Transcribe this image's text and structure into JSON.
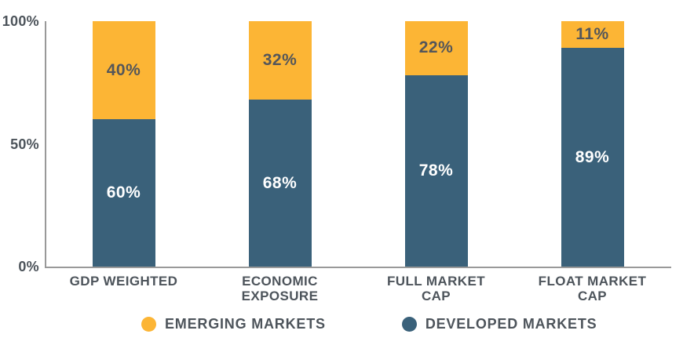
{
  "chart_data": {
    "type": "bar",
    "stacked": true,
    "title": "",
    "categories": [
      "GDP WEIGHTED",
      "ECONOMIC\nEXPOSURE",
      "FULL MARKET\nCAP",
      "FLOAT MARKET\nCAP"
    ],
    "series": [
      {
        "name": "EMERGING MARKETS",
        "color": "#FCB535",
        "label_color": "#54565A",
        "values": [
          40,
          32,
          22,
          11
        ]
      },
      {
        "name": "DEVELOPED MARKETS",
        "color": "#3A617A",
        "label_color": "#FFFFFF",
        "values": [
          60,
          68,
          78,
          89
        ]
      }
    ],
    "value_suffix": "%",
    "y_axis": {
      "ticks": [
        "100%",
        "50%",
        "0%"
      ],
      "min": 0,
      "max": 100
    },
    "grid": false,
    "legend_position": "bottom",
    "axis_color": "#999999",
    "text_color": "#4D545B",
    "background_color": "#FFFFFF"
  }
}
